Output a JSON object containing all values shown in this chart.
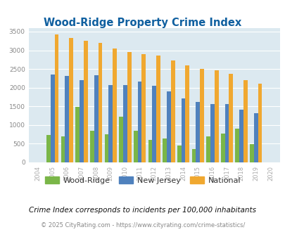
{
  "title": "Wood-Ridge Property Crime Index",
  "years": [
    2004,
    2005,
    2006,
    2007,
    2008,
    2009,
    2010,
    2011,
    2012,
    2013,
    2014,
    2015,
    2016,
    2017,
    2018,
    2019,
    2020
  ],
  "wood_ridge": [
    0,
    740,
    695,
    1490,
    845,
    760,
    1225,
    855,
    610,
    645,
    455,
    355,
    695,
    770,
    910,
    490,
    0
  ],
  "new_jersey": [
    0,
    2360,
    2310,
    2200,
    2330,
    2060,
    2070,
    2155,
    2045,
    1905,
    1715,
    1615,
    1555,
    1555,
    1405,
    1315,
    0
  ],
  "national": [
    0,
    3415,
    3335,
    3255,
    3205,
    3045,
    2950,
    2900,
    2855,
    2730,
    2590,
    2495,
    2460,
    2370,
    2205,
    2110,
    0
  ],
  "wood_ridge_color": "#7ab648",
  "new_jersey_color": "#4f81bd",
  "national_color": "#f0a830",
  "bg_color": "#dce9f0",
  "title_color": "#1060a0",
  "ylim": [
    0,
    3600
  ],
  "yticks": [
    0,
    500,
    1000,
    1500,
    2000,
    2500,
    3000,
    3500
  ],
  "footnote1": "Crime Index corresponds to incidents per 100,000 inhabitants",
  "footnote2": "© 2025 CityRating.com - https://www.cityrating.com/crime-statistics/",
  "legend_labels": [
    "Wood-Ridge",
    "New Jersey",
    "National"
  ],
  "bar_width": 0.28
}
